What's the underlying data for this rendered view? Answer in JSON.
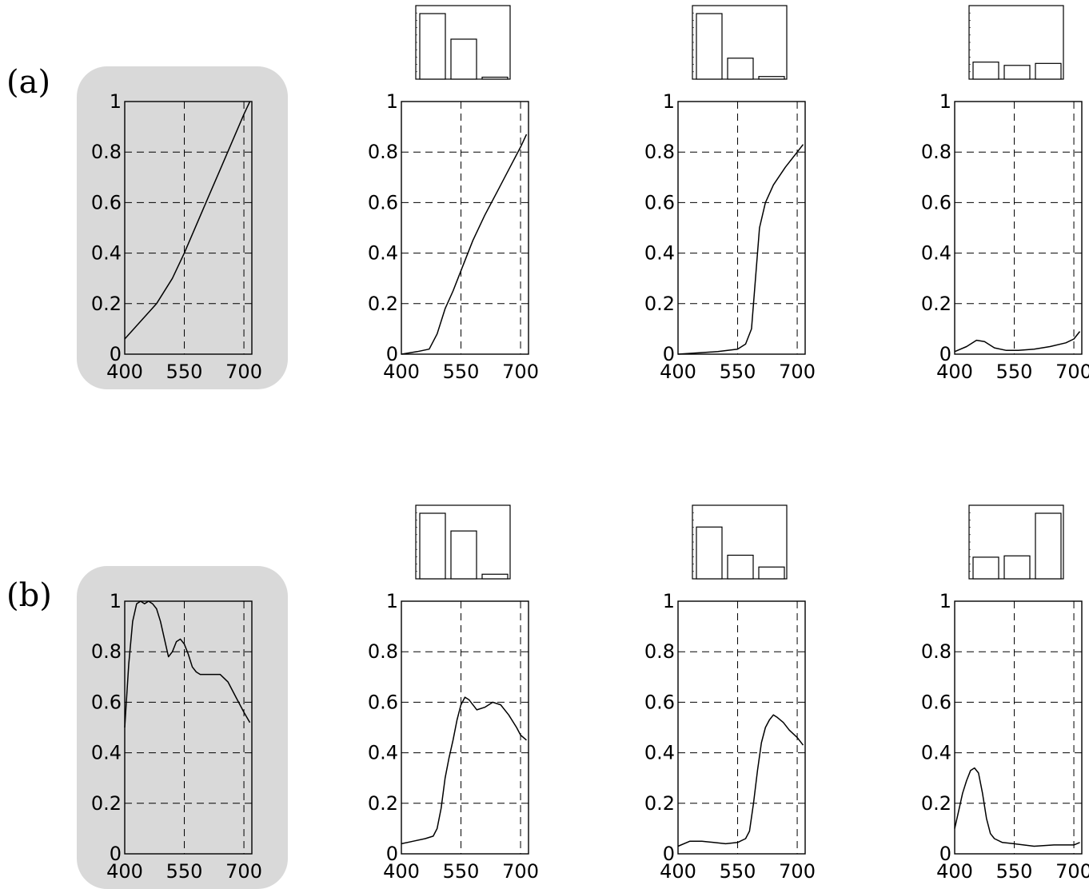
{
  "row_labels": [
    "(a)",
    "(b)"
  ],
  "chart_data": [
    {
      "row": "(a)",
      "type": "line",
      "highlighted": true,
      "xlim": [
        400,
        720
      ],
      "ylim": [
        0,
        1
      ],
      "xticks": [
        "400",
        "550",
        "700"
      ],
      "yticks": [
        "0",
        "0.2",
        "0.4",
        "0.6",
        "0.8",
        "1"
      ],
      "grid": "dashed",
      "x": [
        400,
        440,
        480,
        520,
        550,
        580,
        610,
        640,
        670,
        700,
        715
      ],
      "y": [
        0.06,
        0.13,
        0.2,
        0.3,
        0.4,
        0.51,
        0.62,
        0.73,
        0.84,
        0.95,
        1.0
      ]
    },
    {
      "row": "(a)",
      "type": "line",
      "xlim": [
        400,
        720
      ],
      "ylim": [
        0,
        1
      ],
      "xticks": [
        "400",
        "550",
        "700"
      ],
      "yticks": [
        "0",
        "0.2",
        "0.4",
        "0.6",
        "0.8",
        "1"
      ],
      "grid": "dashed",
      "x": [
        400,
        440,
        470,
        490,
        510,
        530,
        550,
        580,
        610,
        640,
        670,
        700,
        715
      ],
      "y": [
        0.0,
        0.01,
        0.02,
        0.08,
        0.18,
        0.25,
        0.33,
        0.45,
        0.55,
        0.64,
        0.73,
        0.82,
        0.87
      ],
      "inset_bars": [
        1.0,
        0.61,
        0.03
      ]
    },
    {
      "row": "(a)",
      "type": "line",
      "xlim": [
        400,
        720
      ],
      "ylim": [
        0,
        1
      ],
      "xticks": [
        "400",
        "550",
        "700"
      ],
      "yticks": [
        "0",
        "0.2",
        "0.4",
        "0.6",
        "0.8",
        "1"
      ],
      "grid": "dashed",
      "x": [
        400,
        450,
        500,
        550,
        570,
        585,
        595,
        605,
        620,
        640,
        670,
        700,
        715
      ],
      "y": [
        0.0,
        0.005,
        0.01,
        0.02,
        0.04,
        0.1,
        0.3,
        0.5,
        0.6,
        0.67,
        0.74,
        0.8,
        0.83
      ],
      "inset_bars": [
        1.0,
        0.32,
        0.04
      ]
    },
    {
      "row": "(a)",
      "type": "line",
      "xlim": [
        400,
        720
      ],
      "ylim": [
        0,
        1
      ],
      "xticks": [
        "400",
        "550",
        "700"
      ],
      "yticks": [
        "0",
        "0.2",
        "0.4",
        "0.6",
        "0.8",
        "1"
      ],
      "grid": "dashed",
      "x": [
        400,
        430,
        455,
        475,
        500,
        530,
        560,
        600,
        640,
        680,
        700,
        715
      ],
      "y": [
        0.01,
        0.03,
        0.055,
        0.05,
        0.025,
        0.015,
        0.015,
        0.02,
        0.03,
        0.045,
        0.06,
        0.09
      ],
      "inset_bars": [
        0.26,
        0.21,
        0.24
      ]
    },
    {
      "row": "(b)",
      "type": "line",
      "highlighted": true,
      "xlim": [
        400,
        720
      ],
      "ylim": [
        0,
        1
      ],
      "xticks": [
        "400",
        "550",
        "700"
      ],
      "yticks": [
        "0",
        "0.2",
        "0.4",
        "0.6",
        "0.8",
        "1"
      ],
      "grid": "dashed",
      "x": [
        400,
        410,
        420,
        430,
        440,
        450,
        460,
        470,
        480,
        490,
        500,
        510,
        520,
        530,
        540,
        550,
        560,
        570,
        580,
        590,
        600,
        620,
        640,
        660,
        680,
        700,
        715
      ],
      "y": [
        0.5,
        0.75,
        0.92,
        0.99,
        1.0,
        0.99,
        1.0,
        0.99,
        0.97,
        0.92,
        0.85,
        0.78,
        0.8,
        0.84,
        0.85,
        0.83,
        0.79,
        0.74,
        0.72,
        0.71,
        0.71,
        0.71,
        0.71,
        0.68,
        0.62,
        0.56,
        0.52
      ]
    },
    {
      "row": "(b)",
      "type": "line",
      "xlim": [
        400,
        720
      ],
      "ylim": [
        0,
        1
      ],
      "xticks": [
        "400",
        "550",
        "700"
      ],
      "yticks": [
        "0",
        "0.2",
        "0.4",
        "0.6",
        "0.8",
        "1"
      ],
      "grid": "dashed",
      "x": [
        400,
        430,
        460,
        480,
        490,
        500,
        510,
        520,
        530,
        540,
        550,
        560,
        570,
        590,
        610,
        630,
        650,
        670,
        690,
        700,
        715
      ],
      "y": [
        0.04,
        0.05,
        0.06,
        0.07,
        0.1,
        0.18,
        0.3,
        0.38,
        0.45,
        0.53,
        0.59,
        0.62,
        0.61,
        0.57,
        0.58,
        0.6,
        0.59,
        0.55,
        0.5,
        0.47,
        0.45
      ],
      "inset_bars": [
        1.0,
        0.73,
        0.07
      ]
    },
    {
      "row": "(b)",
      "type": "line",
      "xlim": [
        400,
        720
      ],
      "ylim": [
        0,
        1
      ],
      "xticks": [
        "400",
        "550",
        "700"
      ],
      "yticks": [
        "0",
        "0.2",
        "0.4",
        "0.6",
        "0.8",
        "1"
      ],
      "grid": "dashed",
      "x": [
        400,
        430,
        460,
        490,
        520,
        550,
        570,
        580,
        590,
        600,
        610,
        620,
        630,
        640,
        650,
        665,
        680,
        700,
        715
      ],
      "y": [
        0.03,
        0.05,
        0.05,
        0.045,
        0.04,
        0.045,
        0.06,
        0.09,
        0.2,
        0.33,
        0.44,
        0.5,
        0.53,
        0.55,
        0.54,
        0.52,
        0.49,
        0.46,
        0.43
      ],
      "inset_bars": [
        0.79,
        0.36,
        0.18
      ]
    },
    {
      "row": "(b)",
      "type": "line",
      "xlim": [
        400,
        720
      ],
      "ylim": [
        0,
        1
      ],
      "xticks": [
        "400",
        "550",
        "700"
      ],
      "yticks": [
        "0",
        "0.2",
        "0.4",
        "0.6",
        "0.8",
        "1"
      ],
      "grid": "dashed",
      "x": [
        400,
        410,
        420,
        430,
        440,
        450,
        460,
        470,
        480,
        490,
        500,
        520,
        550,
        600,
        650,
        700,
        715
      ],
      "y": [
        0.1,
        0.17,
        0.24,
        0.29,
        0.33,
        0.34,
        0.32,
        0.24,
        0.14,
        0.08,
        0.06,
        0.045,
        0.04,
        0.03,
        0.035,
        0.035,
        0.045
      ],
      "inset_bars": [
        0.33,
        0.35,
        1.0
      ]
    }
  ]
}
